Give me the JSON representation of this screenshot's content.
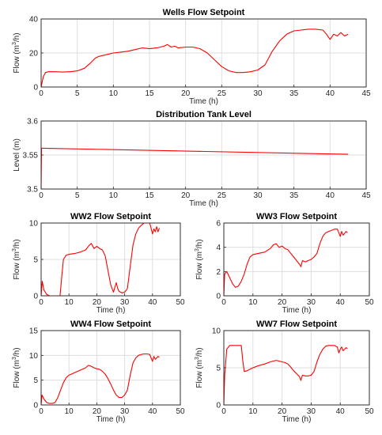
{
  "chart_data": [
    {
      "type": "line",
      "title": "Wells Flow Setpoint",
      "xlabel": "Time (h)",
      "ylabel": "Flow (m3/h)",
      "ylabel_base": "Flow (m",
      "ylabel_sup": "3",
      "ylabel_end": "/h)",
      "xlim": [
        0,
        45
      ],
      "ylim": [
        0,
        40
      ],
      "xticks": [
        0,
        5,
        10,
        15,
        20,
        25,
        30,
        35,
        40,
        45
      ],
      "yticks": [
        0,
        20,
        40
      ],
      "grid": true,
      "color": "#ff0000",
      "series": [
        {
          "x": [
            0,
            0.3,
            0.6,
            1,
            2,
            3,
            4,
            5,
            6,
            6.8,
            7.5,
            8,
            9,
            10,
            11,
            12,
            13,
            14,
            15,
            16,
            17,
            17.5,
            18,
            18.5,
            19,
            20,
            21,
            22,
            23,
            24,
            25,
            26,
            27,
            28,
            29,
            30,
            31,
            32,
            33,
            34,
            35,
            36,
            37,
            38,
            39,
            39.5,
            40,
            40.5,
            41,
            41.5,
            42,
            42.5
          ],
          "y": [
            0,
            6,
            8.5,
            9,
            9,
            8.8,
            9,
            9.5,
            11,
            14,
            17,
            18,
            19,
            20,
            20.5,
            21,
            22,
            23,
            22.5,
            23,
            24,
            25,
            23.5,
            24,
            23,
            23.5,
            23.5,
            22.5,
            20,
            16,
            12,
            9.5,
            8.5,
            8.5,
            9,
            10,
            13,
            21,
            27,
            31,
            33,
            33.5,
            34,
            34,
            33.5,
            31,
            28,
            31,
            30,
            32,
            30,
            31
          ]
        }
      ]
    },
    {
      "type": "line",
      "title": "Distribution Tank Level",
      "xlabel": "Time (h)",
      "ylabel": "Level (m)",
      "xlim": [
        0,
        45
      ],
      "ylim": [
        3.5,
        3.6
      ],
      "xticks": [
        0,
        5,
        10,
        15,
        20,
        25,
        30,
        35,
        40,
        45
      ],
      "yticks": [
        3.5,
        3.55,
        3.6
      ],
      "ytick_labels": [
        "3.5",
        "3.55",
        "3.6"
      ],
      "grid": true,
      "color": "#ff0000",
      "series": [
        {
          "x": [
            0,
            0.05,
            0.3,
            42.5
          ],
          "y": [
            3.5,
            3.56,
            3.56,
            3.551
          ]
        }
      ]
    },
    {
      "type": "line",
      "title": "WW2 Flow Setpoint",
      "xlabel": "Time (h)",
      "ylabel": "Flow (m3/h)",
      "ylabel_base": "Flow (m",
      "ylabel_sup": "3",
      "ylabel_end": "/h)",
      "xlim": [
        0,
        50
      ],
      "ylim": [
        0,
        10
      ],
      "xticks": [
        0,
        10,
        20,
        30,
        40,
        50
      ],
      "yticks": [
        0,
        5,
        10
      ],
      "grid": true,
      "color": "#ff0000",
      "series": [
        {
          "x": [
            0,
            0.4,
            1,
            2,
            3,
            4,
            5,
            6,
            6.8,
            7.5,
            8,
            9,
            10,
            12,
            14,
            16,
            17,
            18,
            19,
            20,
            21,
            22,
            23,
            24,
            25,
            26,
            26.5,
            27,
            27.5,
            28,
            29,
            30,
            31,
            32,
            33,
            34,
            35,
            36,
            37,
            38,
            39,
            39.5,
            40,
            40.5,
            41,
            41.5,
            42,
            42.5
          ],
          "y": [
            0,
            2,
            0.8,
            0.2,
            0,
            0,
            0,
            0,
            0,
            3,
            5,
            5.6,
            5.7,
            5.8,
            6,
            6.3,
            6.8,
            7.2,
            6.5,
            6.8,
            6.5,
            6.3,
            5.5,
            3.5,
            1.5,
            0.5,
            1.2,
            1.8,
            1,
            0.6,
            0.4,
            0.5,
            1,
            4,
            7,
            8.5,
            9.3,
            9.7,
            10,
            10,
            10,
            9.3,
            8.5,
            9.2,
            8.8,
            9.5,
            8.8,
            9.3
          ]
        }
      ]
    },
    {
      "type": "line",
      "title": "WW3 Flow Setpoint",
      "xlabel": "Time (h)",
      "ylabel": "Flow (m3/h)",
      "ylabel_base": "Flow (m",
      "ylabel_sup": "3",
      "ylabel_end": "/h)",
      "xlim": [
        0,
        50
      ],
      "ylim": [
        0,
        6
      ],
      "xticks": [
        0,
        10,
        20,
        30,
        40,
        50
      ],
      "yticks": [
        0,
        2,
        4,
        6
      ],
      "grid": true,
      "color": "#ff0000",
      "series": [
        {
          "x": [
            0,
            0.3,
            1,
            2,
            3,
            4,
            5,
            6,
            7,
            8,
            9,
            10,
            12,
            14,
            16,
            17,
            18,
            19,
            20,
            21,
            22,
            23,
            24,
            25,
            26,
            26.5,
            27,
            28,
            29,
            30,
            31,
            32,
            33,
            34,
            35,
            36,
            37,
            38,
            39,
            39.5,
            40,
            40.5,
            41,
            42,
            42.5
          ],
          "y": [
            0,
            1.8,
            2,
            1.5,
            1,
            0.7,
            0.8,
            1.2,
            1.8,
            2.6,
            3.2,
            3.4,
            3.5,
            3.6,
            3.9,
            4.2,
            4.3,
            4,
            4.1,
            3.9,
            3.8,
            3.5,
            3.2,
            2.9,
            2.6,
            2.4,
            2.9,
            2.8,
            2.9,
            3,
            3.2,
            3.5,
            4.3,
            4.9,
            5.2,
            5.3,
            5.4,
            5.5,
            5.5,
            5.2,
            4.9,
            5.3,
            5,
            5.3,
            5.2
          ]
        }
      ]
    },
    {
      "type": "line",
      "title": "WW4 Flow Setpoint",
      "xlabel": "Time (h)",
      "ylabel": "Flow (m3/h)",
      "ylabel_base": "Flow (m",
      "ylabel_sup": "3",
      "ylabel_end": "/h)",
      "xlim": [
        0,
        50
      ],
      "ylim": [
        0,
        15
      ],
      "xticks": [
        0,
        10,
        20,
        30,
        40,
        50
      ],
      "yticks": [
        0,
        5,
        10,
        15
      ],
      "grid": true,
      "color": "#ff0000",
      "series": [
        {
          "x": [
            0,
            0.3,
            1,
            2,
            3,
            4,
            5,
            6,
            7,
            8,
            9,
            10,
            12,
            14,
            16,
            17,
            18,
            19,
            20,
            21,
            22,
            23,
            24,
            25,
            26,
            27,
            28,
            29,
            30,
            31,
            32,
            33,
            34,
            35,
            36,
            37,
            38,
            39,
            39.5,
            40,
            40.5,
            41,
            42,
            42.5
          ],
          "y": [
            0,
            2,
            1.2,
            0.5,
            0.3,
            0.3,
            0.5,
            1.5,
            3,
            4.5,
            5.5,
            6,
            6.5,
            7,
            7.5,
            8,
            7.8,
            7.5,
            7.3,
            7.2,
            6.8,
            6.2,
            5.3,
            4.2,
            3,
            2,
            1.5,
            1.5,
            2,
            3,
            6,
            8.5,
            9.5,
            10,
            10.2,
            10.3,
            10.3,
            10.2,
            9.5,
            8.8,
            9.8,
            9.2,
            9.8,
            9.6
          ]
        }
      ]
    },
    {
      "type": "line",
      "title": "WW7 Flow Setpoint",
      "xlabel": "Time (h)",
      "ylabel": "Flow (m3/h)",
      "ylabel_base": "Flow (m",
      "ylabel_sup": "3",
      "ylabel_end": "/h)",
      "xlim": [
        0,
        50
      ],
      "ylim": [
        0,
        10
      ],
      "xticks": [
        0,
        10,
        20,
        30,
        40,
        50
      ],
      "yticks": [
        0,
        5,
        10
      ],
      "grid": true,
      "color": "#ff0000",
      "series": [
        {
          "x": [
            0,
            0.3,
            1,
            2,
            3,
            4,
            5,
            6,
            6.5,
            7,
            8,
            9,
            10,
            12,
            14,
            16,
            18,
            20,
            21,
            22,
            23,
            24,
            25,
            26,
            26.5,
            27,
            28,
            29,
            30,
            31,
            32,
            33,
            34,
            35,
            36,
            37,
            38,
            39,
            39.5,
            40,
            40.5,
            41,
            42,
            42.5
          ],
          "y": [
            0,
            4,
            7.5,
            8,
            8,
            8,
            8,
            8,
            6,
            4.5,
            4.6,
            4.8,
            5,
            5.3,
            5.5,
            5.8,
            6,
            5.8,
            5.7,
            5.5,
            5.1,
            4.6,
            4.2,
            3.8,
            3.3,
            4,
            3.9,
            3.9,
            4,
            4.5,
            5.8,
            6.8,
            7.5,
            7.9,
            8,
            8,
            8,
            7.8,
            7,
            7.5,
            7.8,
            7.3,
            7.7,
            7.6
          ]
        }
      ]
    }
  ]
}
